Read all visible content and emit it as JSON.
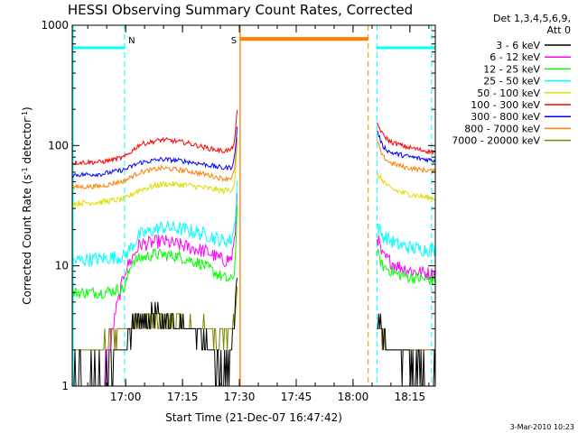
{
  "chart_data": {
    "type": "line",
    "title": "HESSI Observing Summary Count Rates, Corrected",
    "xlabel": "Start Time (21-Dec-07 16:47:42)",
    "ylabel_main": "Corrected Count Rate (s",
    "ylabel_sup1": "-1",
    "ylabel_mid": " detector",
    "ylabel_sup2": "-1",
    "ylabel_end": ")",
    "ylabel": "Corrected Count Rate (s^-1 detector^-1)",
    "yscale": "log",
    "ylim": [
      1,
      1000
    ],
    "xlim_minutes": [
      -1.8,
      94
    ],
    "x_tick_labels": [
      "17:00",
      "17:15",
      "17:30",
      "17:45",
      "18:00",
      "18:15"
    ],
    "x_tick_minutes": [
      12.3,
      27.3,
      42.3,
      57.3,
      72.3,
      87.3
    ],
    "y_tick_labels": [
      "1",
      "10",
      "100",
      "1000"
    ],
    "y_tick_values": [
      1,
      10,
      100,
      1000
    ],
    "legend_header": [
      "Det 1,3,4,5,6,9,",
      "Att 0"
    ],
    "legend_position": "right",
    "timestamp": "3-Mar-2010 10:23",
    "series": [
      {
        "name": "3 - 6 keV",
        "color": "#000000",
        "segments": [
          {
            "x": [
              -1.8,
              8.0,
              14.0,
              20.0,
              26.0,
              32.0,
              36.0,
              38.5,
              40.2,
              41.1,
              41.7
            ],
            "y": [
              1.3,
              1.4,
              3.0,
              3.8,
              3.3,
              2.8,
              1.6,
              1.3,
              1.8,
              3.5,
              8.0
            ]
          },
          {
            "x": [
              78.6,
              82.0,
              86.0,
              90.0,
              94.0
            ],
            "y": [
              3.5,
              2.0,
              1.6,
              1.4,
              1.3
            ]
          }
        ]
      },
      {
        "name": "6 - 12 keV",
        "color": "#ff00ff",
        "segments": [
          {
            "x": [
              -1.8,
              6.0,
              12.0,
              16.0,
              22.0,
              28.0,
              34.0,
              38.0,
              40.2,
              41.1,
              41.7
            ],
            "y": [
              1.2,
              1.1,
              9.0,
              15.0,
              16.0,
              14.5,
              13.0,
              11.0,
              11.5,
              16.0,
              40.0
            ]
          },
          {
            "x": [
              78.6,
              80.0,
              84.0,
              88.0,
              94.0
            ],
            "y": [
              18.0,
              12.0,
              10.0,
              9.0,
              8.5
            ]
          }
        ]
      },
      {
        "name": "12 - 25 keV",
        "color": "#00ff00",
        "segments": [
          {
            "x": [
              -1.8,
              6.0,
              12.0,
              14.0,
              20.0,
              26.0,
              32.0,
              38.0,
              40.2,
              41.1,
              41.7
            ],
            "y": [
              6.0,
              6.0,
              6.5,
              11.0,
              12.5,
              12.0,
              10.5,
              8.0,
              7.5,
              9.0,
              30.0
            ]
          },
          {
            "x": [
              78.6,
              80.0,
              84.0,
              88.0,
              94.0
            ],
            "y": [
              13.0,
              10.0,
              8.5,
              8.0,
              7.5
            ]
          }
        ]
      },
      {
        "name": "25 - 50 keV",
        "color": "#00ffff",
        "segments": [
          {
            "x": [
              -1.8,
              6.0,
              12.0,
              16.0,
              22.0,
              28.0,
              34.0,
              38.0,
              40.2,
              41.1,
              41.7
            ],
            "y": [
              11.0,
              11.5,
              12.0,
              18.0,
              21.0,
              20.0,
              18.0,
              16.0,
              16.5,
              22.0,
              50.0
            ]
          },
          {
            "x": [
              78.6,
              80.0,
              84.0,
              88.0,
              94.0
            ],
            "y": [
              22.0,
              18.0,
              15.0,
              14.0,
              13.5
            ]
          }
        ]
      },
      {
        "name": "50 - 100 keV",
        "color": "#dddd00",
        "segments": [
          {
            "x": [
              -1.8,
              6.0,
              12.0,
              16.0,
              22.0,
              28.0,
              34.0,
              38.0,
              40.2,
              41.1,
              41.7
            ],
            "y": [
              33.0,
              34.0,
              36.0,
              43.0,
              48.0,
              47.0,
              44.0,
              42.0,
              43.0,
              50.0,
              100.0
            ]
          },
          {
            "x": [
              78.6,
              80.0,
              82.0,
              86.0,
              90.0,
              94.0
            ],
            "y": [
              57.0,
              52.0,
              44.0,
              40.0,
              38.0,
              36.0
            ]
          }
        ]
      },
      {
        "name": "100 - 300 keV",
        "color": "#ff0000",
        "segments": [
          {
            "x": [
              -1.8,
              6.0,
              12.0,
              16.0,
              22.0,
              28.0,
              34.0,
              38.0,
              40.2,
              41.1,
              41.7
            ],
            "y": [
              72.0,
              73.0,
              80.0,
              102.0,
              112.0,
              106.0,
              95.0,
              90.0,
              92.0,
              110.0,
              190.0
            ]
          },
          {
            "x": [
              78.6,
              80.0,
              82.0,
              86.0,
              90.0,
              94.0
            ],
            "y": [
              155.0,
              125.0,
              108.0,
              98.0,
              92.0,
              88.0
            ]
          }
        ]
      },
      {
        "name": "300 - 800 keV",
        "color": "#0000ff",
        "segments": [
          {
            "x": [
              -1.8,
              6.0,
              12.0,
              16.0,
              22.0,
              28.0,
              34.0,
              38.0,
              40.2,
              41.1,
              41.7
            ],
            "y": [
              57.0,
              58.0,
              63.0,
              72.0,
              77.0,
              74.0,
              69.0,
              65.0,
              66.0,
              80.0,
              140.0
            ]
          },
          {
            "x": [
              78.6,
              80.0,
              82.0,
              86.0,
              90.0,
              94.0
            ],
            "y": [
              135.0,
              100.0,
              88.0,
              82.0,
              78.0,
              75.0
            ]
          }
        ]
      },
      {
        "name": "800 - 7000 keV",
        "color": "#ff8000",
        "segments": [
          {
            "x": [
              -1.8,
              6.0,
              12.0,
              16.0,
              22.0,
              28.0,
              34.0,
              38.0,
              40.2,
              41.1,
              41.7
            ],
            "y": [
              45.0,
              46.0,
              51.0,
              60.0,
              65.0,
              62.0,
              57.0,
              53.0,
              54.0,
              62.0,
              115.0
            ]
          },
          {
            "x": [
              78.6,
              80.0,
              82.0,
              86.0,
              90.0,
              94.0
            ],
            "y": [
              110.0,
              82.0,
              72.0,
              66.0,
              63.0,
              61.0
            ]
          }
        ]
      },
      {
        "name": "7000 - 20000 keV",
        "color": "#808000",
        "segments": [
          {
            "x": [
              -1.8,
              6.0,
              10.0,
              14.0,
              18.0,
              22.0,
              26.0,
              30.0,
              34.0,
              38.0,
              40.2,
              41.1,
              41.7
            ],
            "y": [
              1.8,
              2.0,
              2.8,
              3.2,
              3.6,
              3.4,
              3.3,
              3.2,
              3.0,
              2.7,
              2.8,
              3.5,
              6.0
            ]
          },
          {
            "x": [
              78.6,
              80.0,
              82.0,
              86.0,
              90.0,
              94.0
            ],
            "y": [
              3.4,
              2.6,
              2.1,
              2.0,
              1.9,
              1.9
            ]
          }
        ]
      }
    ],
    "markers": [
      {
        "label": "N",
        "color": "#00ffff",
        "x": 12.0
      },
      {
        "label": "S",
        "color": "#ff8000",
        "x": 42.5
      }
    ],
    "night_periods": [
      {
        "x": [
          -1.8,
          12.0
        ]
      },
      {
        "x": [
          78.6,
          94.0
        ]
      }
    ],
    "night_level": 650,
    "night_color": "#00ffff",
    "saa_period": {
      "x": [
        42.5,
        76.3
      ]
    },
    "saa_level": 770,
    "saa_color": "#ff8000",
    "dashed_lines_x": [
      12.0,
      76.3,
      78.6,
      93.0
    ],
    "dashed_colors": [
      "#00ffff",
      "#ff8000",
      "#00ffff",
      "#00ffff"
    ]
  }
}
